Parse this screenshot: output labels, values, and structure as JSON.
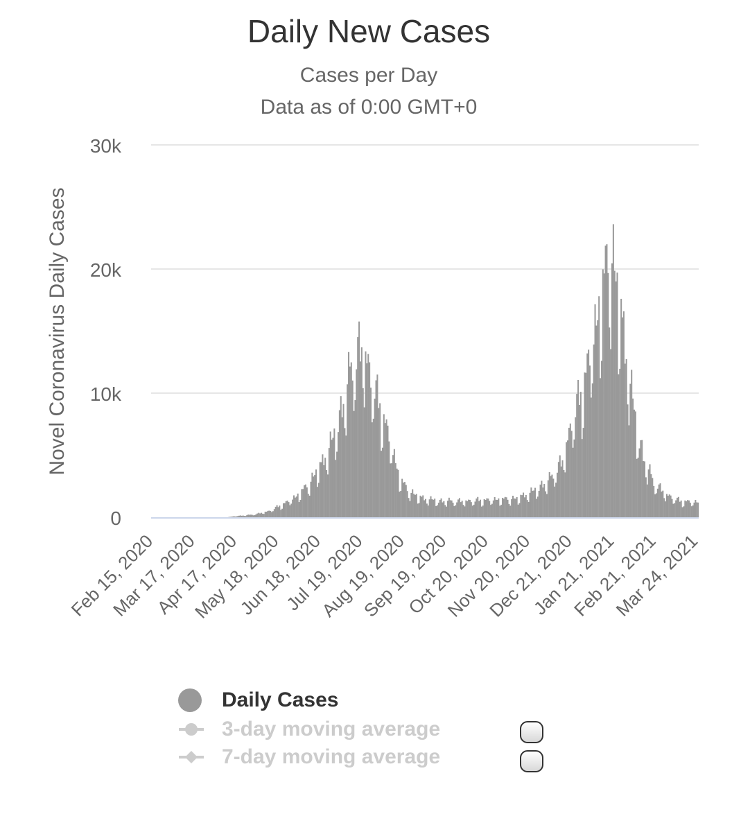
{
  "colors": {
    "bar": "#999999",
    "grid": "#e6e6e6",
    "axis_line": "#ccd6eb",
    "label": "#666666",
    "legend_active": "#333333",
    "legend_inactive": "#cccccc"
  },
  "legend": {
    "items": [
      {
        "label": "Daily Cases",
        "active": true
      },
      {
        "label": "3-day moving average",
        "active": false
      },
      {
        "label": "7-day moving average",
        "active": false
      }
    ]
  },
  "chart_data": {
    "type": "bar",
    "title": "Daily New Cases",
    "subtitle": "Cases per Day",
    "subtitle2": "Data as of 0:00 GMT+0",
    "ylabel": "Novel Coronavirus Daily Cases",
    "xlabel": "",
    "ylim": [
      0,
      30000
    ],
    "y_ticks": [
      0,
      10000,
      20000,
      30000
    ],
    "y_tick_labels": [
      "0",
      "10k",
      "20k",
      "30k"
    ],
    "x_tick_labels": [
      "Feb 15, 2020",
      "Mar 17, 2020",
      "Apr 17, 2020",
      "May 18, 2020",
      "Jun 18, 2020",
      "Jul 19, 2020",
      "Aug 19, 2020",
      "Sep 19, 2020",
      "Oct 20, 2020",
      "Nov 20, 2020",
      "Dec 21, 2020",
      "Jan 21, 2021",
      "Feb 21, 2021",
      "Mar 24, 2021"
    ],
    "start_date": "Feb 15, 2020",
    "days": 420,
    "series": [
      {
        "name": "Daily Cases",
        "anchors": [
          [
            0,
            0
          ],
          [
            40,
            0
          ],
          [
            58,
            0
          ],
          [
            65,
            100
          ],
          [
            72,
            150
          ],
          [
            80,
            250
          ],
          [
            90,
            500
          ],
          [
            100,
            1000
          ],
          [
            110,
            1600
          ],
          [
            120,
            2600
          ],
          [
            130,
            4200
          ],
          [
            140,
            6500
          ],
          [
            148,
            9500
          ],
          [
            153,
            12000
          ],
          [
            158,
            13200
          ],
          [
            162,
            13500
          ],
          [
            166,
            12200
          ],
          [
            170,
            10500
          ],
          [
            176,
            8500
          ],
          [
            182,
            6500
          ],
          [
            186,
            4800
          ],
          [
            190,
            3200
          ],
          [
            196,
            2200
          ],
          [
            205,
            1600
          ],
          [
            220,
            1300
          ],
          [
            240,
            1300
          ],
          [
            260,
            1400
          ],
          [
            280,
            1500
          ],
          [
            295,
            2200
          ],
          [
            305,
            3000
          ],
          [
            315,
            4500
          ],
          [
            323,
            8000
          ],
          [
            330,
            10000
          ],
          [
            335,
            12500
          ],
          [
            340,
            15000
          ],
          [
            345,
            18000
          ],
          [
            350,
            20500
          ],
          [
            352,
            21500
          ],
          [
            356,
            19000
          ],
          [
            360,
            16000
          ],
          [
            364,
            13000
          ],
          [
            368,
            10000
          ],
          [
            372,
            7000
          ],
          [
            378,
            4500
          ],
          [
            385,
            2800
          ],
          [
            395,
            1800
          ],
          [
            405,
            1300
          ],
          [
            420,
            1200
          ]
        ],
        "spikes": [
          [
            26,
            1500
          ],
          [
            13,
            6500
          ],
          [
            8,
            11500
          ],
          [
            17,
            13700
          ],
          [
            6,
            14000
          ],
          [
            28,
            12000
          ],
          [
            9,
            12800
          ],
          [
            2,
            13500
          ],
          [
            18,
            11500
          ],
          [
            14,
            13300
          ],
          [
            5,
            12500
          ],
          [
            7,
            10800
          ],
          [
            27,
            12400
          ],
          [
            15,
            13200
          ],
          [
            1,
            11000
          ],
          [
            30,
            13800
          ],
          [
            22,
            11800
          ],
          [
            31,
            21800
          ],
          [
            36,
            22000
          ],
          [
            37,
            21700
          ],
          [
            12,
            18000
          ],
          [
            19,
            17500
          ],
          [
            24,
            18600
          ],
          [
            10,
            14700
          ],
          [
            40,
            16200
          ],
          [
            3,
            12000
          ],
          [
            41,
            11300
          ],
          [
            4,
            10500
          ],
          [
            33,
            9300
          ],
          [
            21,
            7600
          ]
        ]
      }
    ]
  }
}
